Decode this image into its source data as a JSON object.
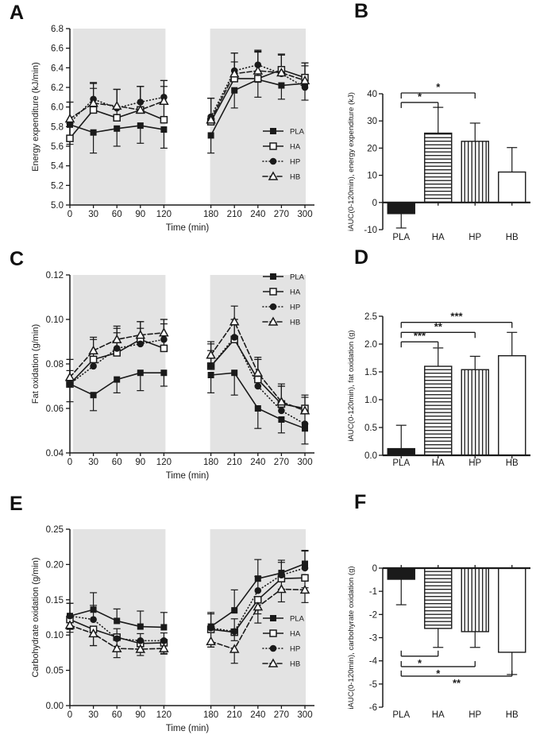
{
  "figure": {
    "description": "Six-panel metabolic study figure",
    "panel_labels": [
      "A",
      "B",
      "C",
      "D",
      "E",
      "F"
    ],
    "conditions": [
      "PLA",
      "HA",
      "HP",
      "HB"
    ]
  },
  "colors": {
    "ink": "#1a1a1a",
    "shaded_band": "#e3e3e3",
    "background": "#ffffff",
    "open_fill": "#ffffff"
  },
  "chart_data": [
    {
      "panel_label": "A",
      "type": "line",
      "xlabel": "Time (min)",
      "ylabel": "Energy expenditure (kJ/min)",
      "x": [
        0,
        30,
        60,
        90,
        120,
        180,
        210,
        240,
        270,
        300
      ],
      "ylim": [
        5.0,
        6.8
      ],
      "ytick_step": 0.2,
      "y_decimals": 1,
      "shaded_x_ranges": [
        [
          4,
          122
        ],
        [
          179,
          301
        ]
      ],
      "legend_position": "bottom-right",
      "series": [
        {
          "name": "PLA",
          "marker": "filled-square",
          "line_style": "solid",
          "err_dir": "down",
          "values": [
            5.82,
            5.74,
            5.78,
            5.81,
            5.77,
            5.71,
            6.17,
            6.28,
            6.22,
            6.24
          ],
          "err": [
            0.2,
            0.21,
            0.18,
            0.18,
            0.19,
            0.18,
            0.18,
            0.18,
            0.14,
            0.17
          ]
        },
        {
          "name": "HA",
          "marker": "open-square",
          "line_style": "solid",
          "err_dir": "up",
          "values": [
            5.68,
            5.97,
            5.89,
            5.97,
            5.87,
            5.85,
            6.29,
            6.29,
            6.38,
            6.3
          ],
          "err": [
            0.15,
            0.27,
            0.29,
            0.24,
            0.4,
            0.24,
            0.26,
            0.27,
            0.16,
            0.15
          ]
        },
        {
          "name": "HP",
          "marker": "filled-circle",
          "line_style": "dotted",
          "err_dir": "up",
          "values": [
            5.84,
            6.08,
            5.99,
            6.05,
            6.1,
            5.9,
            6.37,
            6.43,
            6.34,
            6.2
          ],
          "err": [
            0.21,
            0.17,
            0.19,
            0.16,
            0.17,
            0.19,
            0.18,
            0.15,
            0.2,
            0.25
          ]
        },
        {
          "name": "HB",
          "marker": "open-triangle",
          "line_style": "dashed",
          "err_dir": "up",
          "values": [
            5.88,
            6.04,
            6.01,
            5.97,
            6.06,
            5.87,
            6.34,
            6.37,
            6.35,
            6.27
          ],
          "err": [
            0.17,
            0.15,
            0.17,
            0.24,
            0.15,
            0.22,
            0.12,
            0.2,
            0.18,
            0.15
          ]
        }
      ]
    },
    {
      "panel_label": "B",
      "type": "bar",
      "ylabel": "iAUC(0-120min), energy expenditure (kJ)",
      "categories": [
        "PLA",
        "HA",
        "HP",
        "HB"
      ],
      "values": [
        -4.1,
        25.5,
        22.5,
        11.2
      ],
      "errors": [
        5.3,
        9.5,
        6.7,
        9.0
      ],
      "bar_styles": [
        "solid-black",
        "h-stripes",
        "v-stripes",
        "open"
      ],
      "ylim": [
        -10,
        40
      ],
      "ytick_step": 10,
      "y_decimals": 0,
      "significance": [
        {
          "from": "PLA",
          "to": "HA",
          "label": "*",
          "y": 36.8
        },
        {
          "from": "PLA",
          "to": "HP",
          "label": "*",
          "y": 40.3
        }
      ]
    },
    {
      "panel_label": "C",
      "type": "line",
      "xlabel": "Time (min)",
      "ylabel": "Fat oxidation (g/min)",
      "x": [
        0,
        30,
        60,
        90,
        120,
        180,
        210,
        240,
        270,
        300
      ],
      "ylim": [
        0.04,
        0.12
      ],
      "ytick_step": 0.02,
      "y_decimals": 2,
      "shaded_x_ranges": [
        [
          4,
          122
        ],
        [
          179,
          301
        ]
      ],
      "legend_position": "top-right",
      "series": [
        {
          "name": "PLA",
          "marker": "filled-square",
          "line_style": "solid",
          "err_dir": "down",
          "values": [
            0.071,
            0.066,
            0.073,
            0.076,
            0.076,
            0.075,
            0.076,
            0.06,
            0.055,
            0.051
          ],
          "err": [
            0.008,
            0.007,
            0.006,
            0.008,
            0.006,
            0.008,
            0.01,
            0.009,
            0.006,
            0.007
          ]
        },
        {
          "name": "HA",
          "marker": "open-square",
          "line_style": "solid",
          "err_dir": "up",
          "values": [
            0.071,
            0.082,
            0.085,
            0.091,
            0.087,
            0.079,
            0.091,
            0.073,
            0.062,
            0.06
          ],
          "err": [
            0.011,
            0.009,
            0.011,
            0.008,
            0.013,
            0.01,
            0.009,
            0.009,
            0.008,
            0.006
          ]
        },
        {
          "name": "HP",
          "marker": "filled-circle",
          "line_style": "dotted",
          "err_dir": "up",
          "values": [
            0.071,
            0.079,
            0.087,
            0.089,
            0.091,
            0.079,
            0.092,
            0.07,
            0.059,
            0.053
          ],
          "err": [
            0.006,
            0.006,
            0.007,
            0.007,
            0.007,
            0.007,
            0.008,
            0.012,
            0.011,
            0.008
          ]
        },
        {
          "name": "HB",
          "marker": "open-triangle",
          "line_style": "dashed",
          "err_dir": "up",
          "values": [
            0.074,
            0.086,
            0.091,
            0.093,
            0.094,
            0.084,
            0.099,
            0.076,
            0.063,
            0.059
          ],
          "err": [
            0.008,
            0.006,
            0.006,
            0.006,
            0.006,
            0.006,
            0.007,
            0.007,
            0.008,
            0.006
          ]
        }
      ]
    },
    {
      "panel_label": "D",
      "type": "bar",
      "ylabel": "iAUC(0-120min), fat oxidation (g)",
      "categories": [
        "PLA",
        "HA",
        "HP",
        "HB"
      ],
      "values": [
        0.12,
        1.6,
        1.54,
        1.79
      ],
      "errors": [
        0.42,
        0.33,
        0.24,
        0.42
      ],
      "bar_styles": [
        "solid-black",
        "h-stripes",
        "v-stripes",
        "open"
      ],
      "ylim": [
        0,
        2.5
      ],
      "ytick_step": 0.5,
      "y_decimals": 1,
      "significance": [
        {
          "from": "PLA",
          "to": "HA",
          "label": "***",
          "y": 2.04
        },
        {
          "from": "PLA",
          "to": "HP",
          "label": "**",
          "y": 2.21
        },
        {
          "from": "PLA",
          "to": "HB",
          "label": "***",
          "y": 2.39
        }
      ]
    },
    {
      "panel_label": "E",
      "type": "line",
      "xlabel": "Time (min)",
      "ylabel": "Carbohydrate oxidation (g/min)",
      "x": [
        0,
        30,
        60,
        90,
        120,
        180,
        210,
        240,
        270,
        300
      ],
      "ylim": [
        0.0,
        0.25
      ],
      "ytick_step": 0.05,
      "y_decimals": 2,
      "shaded_x_ranges": [
        [
          4,
          122
        ],
        [
          179,
          301
        ]
      ],
      "legend_position": "bottom-right",
      "series": [
        {
          "name": "PLA",
          "marker": "filled-square",
          "line_style": "solid",
          "err_dir": "up",
          "values": [
            0.127,
            0.136,
            0.12,
            0.112,
            0.111,
            0.112,
            0.135,
            0.18,
            0.188,
            0.201
          ],
          "err": [
            0.018,
            0.024,
            0.017,
            0.022,
            0.021,
            0.02,
            0.029,
            0.027,
            0.018,
            0.019
          ]
        },
        {
          "name": "HA",
          "marker": "open-square",
          "line_style": "solid",
          "err_dir": "down",
          "values": [
            0.122,
            0.108,
            0.097,
            0.088,
            0.089,
            0.108,
            0.104,
            0.15,
            0.18,
            0.181
          ],
          "err": [
            0.014,
            0.023,
            0.013,
            0.012,
            0.015,
            0.025,
            0.012,
            0.02,
            0.015,
            0.014
          ]
        },
        {
          "name": "HP",
          "marker": "filled-circle",
          "line_style": "dotted",
          "err_dir": "up",
          "values": [
            0.127,
            0.122,
            0.095,
            0.092,
            0.092,
            0.11,
            0.105,
            0.163,
            0.185,
            0.195
          ],
          "err": [
            0.018,
            0.02,
            0.014,
            0.01,
            0.011,
            0.02,
            0.018,
            0.02,
            0.018,
            0.024
          ]
        },
        {
          "name": "HB",
          "marker": "open-triangle",
          "line_style": "dashed",
          "err_dir": "down",
          "values": [
            0.114,
            0.102,
            0.081,
            0.08,
            0.081,
            0.091,
            0.08,
            0.14,
            0.165,
            0.164
          ],
          "err": [
            0.01,
            0.017,
            0.013,
            0.009,
            0.008,
            0.008,
            0.02,
            0.023,
            0.018,
            0.018
          ]
        }
      ]
    },
    {
      "panel_label": "F",
      "type": "bar",
      "ylabel": "iAUC(0-120min), carbohyrate oxidation (g)",
      "categories": [
        "PLA",
        "HA",
        "HP",
        "HB"
      ],
      "values": [
        -0.48,
        -2.6,
        -2.74,
        -3.63
      ],
      "errors": [
        1.1,
        0.82,
        0.68,
        0.96
      ],
      "bar_styles": [
        "solid-black",
        "h-stripes",
        "v-stripes",
        "open"
      ],
      "ylim": [
        -6,
        0
      ],
      "ytick_step": 1,
      "y_decimals": 0,
      "significance": [
        {
          "from": "PLA",
          "to": "HA",
          "label": "*",
          "y": -3.8
        },
        {
          "from": "PLA",
          "to": "HP",
          "label": "*",
          "y": -4.25
        },
        {
          "from": "PLA",
          "to": "HB",
          "label": "**",
          "y": -4.66
        }
      ]
    }
  ]
}
